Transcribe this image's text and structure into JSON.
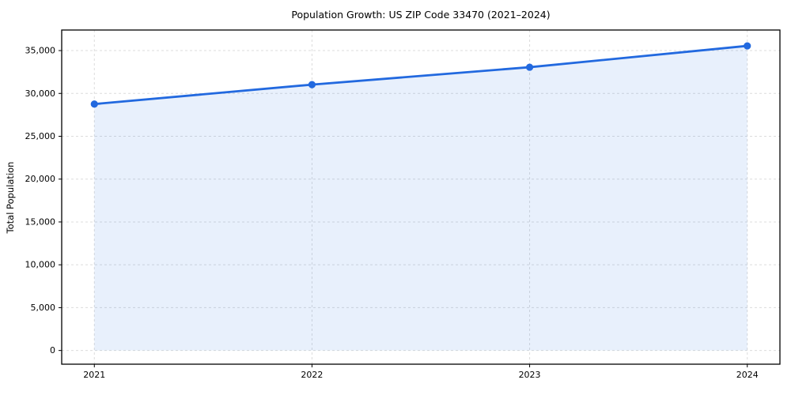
{
  "chart_data": {
    "type": "line",
    "title": "Population Growth: US ZIP Code 33470 (2021–2024)",
    "xlabel": "",
    "ylabel": "Total Population",
    "x": [
      2021,
      2022,
      2023,
      2024
    ],
    "x_tick_labels": [
      "2021",
      "2022",
      "2023",
      "2024"
    ],
    "series": [
      {
        "name": "Total Population",
        "values": [
          28760,
          31030,
          33060,
          35550
        ]
      }
    ],
    "y_ticks": [
      0,
      5000,
      10000,
      15000,
      20000,
      25000,
      30000,
      35000
    ],
    "y_tick_labels": [
      "0",
      "5,000",
      "10,000",
      "15,000",
      "20,000",
      "25,000",
      "30,000",
      "35,000"
    ],
    "xlim": [
      2020.85,
      2024.15
    ],
    "ylim": [
      -1600,
      37400
    ],
    "fill_baseline": 0,
    "grid": true,
    "grid_style": "dashed",
    "legend": false,
    "marker": "circle",
    "colors": {
      "line": "#2269df",
      "fill_opacity": 0.1,
      "grid": "#dcdcdc",
      "spine": "#000000",
      "text": "#000000",
      "background": "#ffffff"
    }
  }
}
